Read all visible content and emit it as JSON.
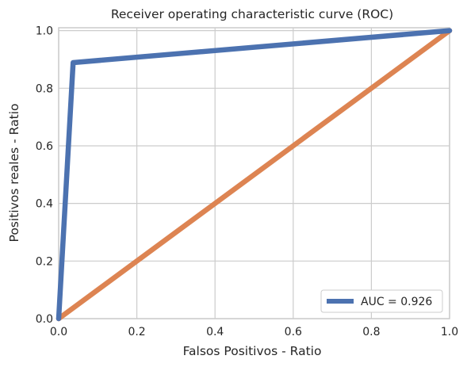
{
  "chart_data": {
    "type": "line",
    "title": "Receiver operating characteristic curve (ROC)",
    "xlabel": "Falsos Positivos - Ratio",
    "ylabel": "Positivos reales - Ratio",
    "xlim": [
      0.0,
      1.0
    ],
    "ylim": [
      0.0,
      1.01
    ],
    "grid": true,
    "legend_position": "lower-right",
    "x_ticks": [
      {
        "value": 0.0,
        "label": "0.0"
      },
      {
        "value": 0.2,
        "label": "0.2"
      },
      {
        "value": 0.4,
        "label": "0.4"
      },
      {
        "value": 0.6,
        "label": "0.6"
      },
      {
        "value": 0.8,
        "label": "0.8"
      },
      {
        "value": 1.0,
        "label": "1.0"
      }
    ],
    "y_ticks": [
      {
        "value": 0.0,
        "label": "0.0"
      },
      {
        "value": 0.2,
        "label": "0.2"
      },
      {
        "value": 0.4,
        "label": "0.4"
      },
      {
        "value": 0.6,
        "label": "0.6"
      },
      {
        "value": 0.8,
        "label": "0.8"
      },
      {
        "value": 1.0,
        "label": "1.0"
      }
    ],
    "series": [
      {
        "name": "AUC = 0.926",
        "color": "#4c72b0",
        "in_legend": true,
        "x": [
          0.0,
          0.037,
          1.0
        ],
        "y": [
          0.0,
          0.889,
          1.0
        ]
      },
      {
        "color": "#dd8452",
        "in_legend": false,
        "x": [
          0.0,
          1.0
        ],
        "y": [
          0.0,
          1.0
        ]
      }
    ]
  }
}
